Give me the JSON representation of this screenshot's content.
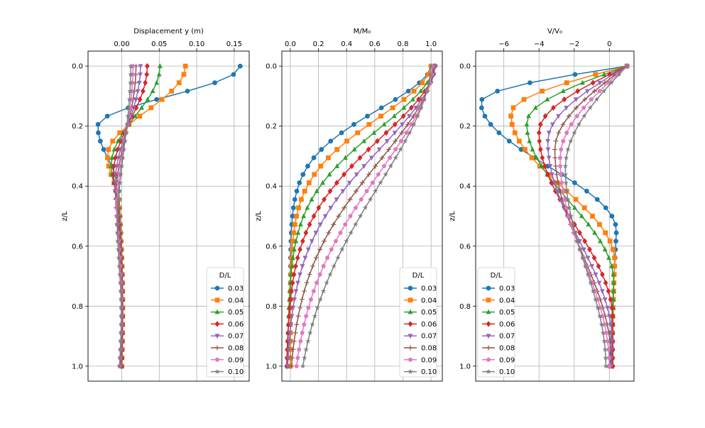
{
  "figure": {
    "background": "#ffffff"
  },
  "legend": {
    "title": "D/L",
    "placement": "lower-right"
  },
  "series_style": [
    {
      "name": "0.03",
      "color": "#1f77b4",
      "marker": "circle"
    },
    {
      "name": "0.04",
      "color": "#ff7f0e",
      "marker": "square"
    },
    {
      "name": "0.05",
      "color": "#2ca02c",
      "marker": "triangle-up"
    },
    {
      "name": "0.06",
      "color": "#d62728",
      "marker": "diamond"
    },
    {
      "name": "0.07",
      "color": "#9467bd",
      "marker": "triangle-down"
    },
    {
      "name": "0.08",
      "color": "#8c564b",
      "marker": "plus"
    },
    {
      "name": "0.09",
      "color": "#e377c2",
      "marker": "pentagon"
    },
    {
      "name": "0.10",
      "color": "#7f7f7f",
      "marker": "star"
    }
  ],
  "chart_data": [
    {
      "type": "line",
      "xlabel": "Displacement y (m)",
      "xlabel_position": "top",
      "ylabel": "z/L",
      "xlim": [
        -0.045,
        0.17
      ],
      "ylim": [
        1.05,
        -0.05
      ],
      "xticks": [
        0.0,
        0.05,
        0.1,
        0.15
      ],
      "xtick_labels": [
        "0.00",
        "0.05",
        "0.10",
        "0.15"
      ],
      "yticks": [
        0.0,
        0.2,
        0.4,
        0.6,
        0.8,
        1.0
      ],
      "ytick_labels": [
        "0.0",
        "0.2",
        "0.4",
        "0.6",
        "0.8",
        "1.0"
      ],
      "grid": true,
      "legend_location": "lower-right",
      "series": [
        {
          "name": "0.03",
          "x0": 0.158,
          "xmin": -0.032,
          "zmin": 0.2,
          "ztrough": 0.42,
          "xend": 0.0
        },
        {
          "name": "0.04",
          "x0": 0.085,
          "xmin": -0.019,
          "zmin": 0.3,
          "ztrough": 0.46,
          "xend": 0.0
        },
        {
          "name": "0.05",
          "x0": 0.051,
          "xmin": -0.014,
          "zmin": 0.33,
          "ztrough": 0.48,
          "xend": 0.0
        },
        {
          "name": "0.06",
          "x0": 0.034,
          "xmin": -0.011,
          "zmin": 0.36,
          "ztrough": 0.5,
          "xend": 0.0
        },
        {
          "name": "0.07",
          "x0": 0.025,
          "xmin": -0.009,
          "zmin": 0.4,
          "ztrough": 0.53,
          "xend": -0.001
        },
        {
          "name": "0.08",
          "x0": 0.019,
          "xmin": -0.008,
          "zmin": 0.45,
          "ztrough": 0.56,
          "xend": -0.002
        },
        {
          "name": "0.09",
          "x0": 0.015,
          "xmin": -0.007,
          "zmin": 0.5,
          "ztrough": 0.6,
          "xend": -0.003
        },
        {
          "name": "0.10",
          "x0": 0.012,
          "xmin": -0.006,
          "zmin": 0.55,
          "ztrough": 0.65,
          "xend": -0.003
        }
      ]
    },
    {
      "type": "line",
      "xlabel": "M/M₀",
      "xlabel_position": "top",
      "ylabel": "z/L",
      "xlim": [
        -0.06,
        1.08
      ],
      "ylim": [
        1.05,
        -0.05
      ],
      "xticks": [
        0.0,
        0.2,
        0.4,
        0.6,
        0.8,
        1.0
      ],
      "xtick_labels": [
        "0.0",
        "0.2",
        "0.4",
        "0.6",
        "0.8",
        "1.0"
      ],
      "yticks": [
        0.0,
        0.2,
        0.4,
        0.6,
        0.8,
        1.0
      ],
      "ytick_labels": [
        "0.0",
        "0.2",
        "0.4",
        "0.6",
        "0.8",
        "1.0"
      ],
      "grid": true,
      "legend_location": "lower-right",
      "series": [
        {
          "name": "0.03",
          "decay": 0.21,
          "end": 0.0
        },
        {
          "name": "0.04",
          "decay": 0.25,
          "end": 0.0
        },
        {
          "name": "0.05",
          "decay": 0.3,
          "end": -0.02
        },
        {
          "name": "0.06",
          "decay": 0.35,
          "end": -0.03
        },
        {
          "name": "0.07",
          "decay": 0.4,
          "end": -0.03
        },
        {
          "name": "0.08",
          "decay": 0.46,
          "end": -0.02
        },
        {
          "name": "0.09",
          "decay": 0.52,
          "end": -0.01
        },
        {
          "name": "0.10",
          "decay": 0.58,
          "end": 0.0
        }
      ]
    },
    {
      "type": "line",
      "xlabel": "V/V₀",
      "xlabel_position": "top",
      "ylabel": "z/L",
      "xlim": [
        -7.6,
        1.4
      ],
      "ylim": [
        1.05,
        -0.05
      ],
      "xticks": [
        -6,
        -4,
        -2,
        0
      ],
      "xtick_labels": [
        "−6",
        "−4",
        "−2",
        "0"
      ],
      "yticks": [
        0.0,
        0.2,
        0.4,
        0.6,
        0.8,
        1.0
      ],
      "ytick_labels": [
        "0.0",
        "0.2",
        "0.4",
        "0.6",
        "0.8",
        "1.0"
      ],
      "grid": true,
      "legend_location": "lower-left",
      "series": [
        {
          "name": "0.03",
          "vmin": -7.3,
          "zmin": 0.12,
          "vmax": 0.4,
          "zmax": 0.55,
          "vend": 0.0
        },
        {
          "name": "0.04",
          "vmin": -5.6,
          "zmin": 0.16,
          "vmax": 0.3,
          "zmax": 0.65,
          "vend": 0.1
        },
        {
          "name": "0.05",
          "vmin": -4.7,
          "zmin": 0.19,
          "vmax": 0.25,
          "zmax": 0.72,
          "vend": 0.15
        },
        {
          "name": "0.06",
          "vmin": -4.0,
          "zmin": 0.22,
          "vmax": 0.2,
          "zmax": 0.85,
          "vend": 0.2
        },
        {
          "name": "0.07",
          "vmin": -3.5,
          "zmin": 0.25,
          "vmax": 0.15,
          "zmax": 0.92,
          "vend": 0.1
        },
        {
          "name": "0.08",
          "vmin": -3.1,
          "zmin": 0.28,
          "vmax": 0.1,
          "zmax": 0.98,
          "vend": 0.0
        },
        {
          "name": "0.09",
          "vmin": -2.8,
          "zmin": 0.31,
          "vmax": 0.0,
          "zmax": 1.0,
          "vend": -0.1
        },
        {
          "name": "0.10",
          "vmin": -2.5,
          "zmin": 0.34,
          "vmax": -0.2,
          "zmax": 1.0,
          "vend": -0.5
        }
      ]
    }
  ]
}
